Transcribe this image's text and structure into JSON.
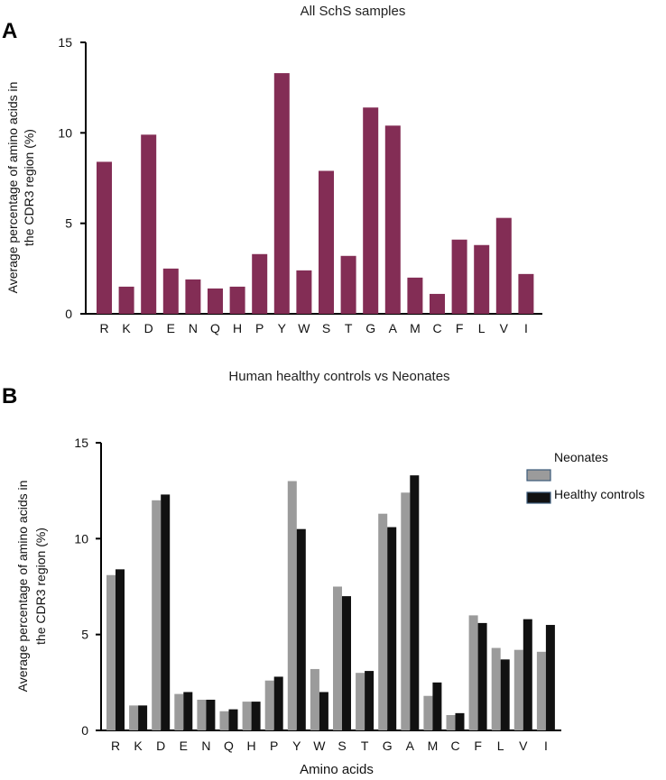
{
  "chart_data": [
    {
      "panel": "A",
      "type": "bar",
      "title": "All SchS samples",
      "ylabel_lines": [
        "Average percentage of amino acids in",
        "the CDR3 region (%)"
      ],
      "xlabel": "",
      "ylim": [
        0,
        15
      ],
      "yticks": [
        0,
        5,
        10,
        15
      ],
      "categories": [
        "R",
        "K",
        "D",
        "E",
        "N",
        "Q",
        "H",
        "P",
        "Y",
        "W",
        "S",
        "T",
        "G",
        "A",
        "M",
        "C",
        "F",
        "L",
        "V",
        "I"
      ],
      "series": [
        {
          "name": "All SchS samples",
          "color": "#832D55",
          "values": [
            8.4,
            1.5,
            9.9,
            2.5,
            1.9,
            1.4,
            1.5,
            3.3,
            13.3,
            2.4,
            7.9,
            3.2,
            11.4,
            10.4,
            2.0,
            1.1,
            4.1,
            3.8,
            5.3,
            2.2
          ]
        }
      ]
    },
    {
      "panel": "B",
      "type": "bar",
      "title": "Human healthy controls vs Neonates",
      "ylabel_lines": [
        "Average percentage of amino acids in",
        "the CDR3 region (%)"
      ],
      "xlabel": "Amino acids",
      "ylim": [
        0,
        15
      ],
      "yticks": [
        0,
        5,
        10,
        15
      ],
      "legend_position": "top-right",
      "categories": [
        "R",
        "K",
        "D",
        "E",
        "N",
        "Q",
        "H",
        "P",
        "Y",
        "W",
        "S",
        "T",
        "G",
        "A",
        "M",
        "C",
        "F",
        "L",
        "V",
        "I"
      ],
      "series": [
        {
          "name": "Neonates",
          "color": "#9B9B9B",
          "values": [
            8.1,
            1.3,
            12.0,
            1.9,
            1.6,
            1.0,
            1.5,
            2.6,
            13.0,
            3.2,
            7.5,
            3.0,
            11.3,
            12.4,
            1.8,
            0.8,
            6.0,
            4.3,
            4.2,
            4.1
          ]
        },
        {
          "name": "Healthy controls",
          "color": "#111111",
          "values": [
            8.4,
            1.3,
            12.3,
            2.0,
            1.6,
            1.1,
            1.5,
            2.8,
            10.5,
            2.0,
            7.0,
            3.1,
            10.6,
            13.3,
            2.5,
            0.9,
            5.6,
            3.7,
            5.8,
            5.5
          ]
        }
      ]
    }
  ]
}
